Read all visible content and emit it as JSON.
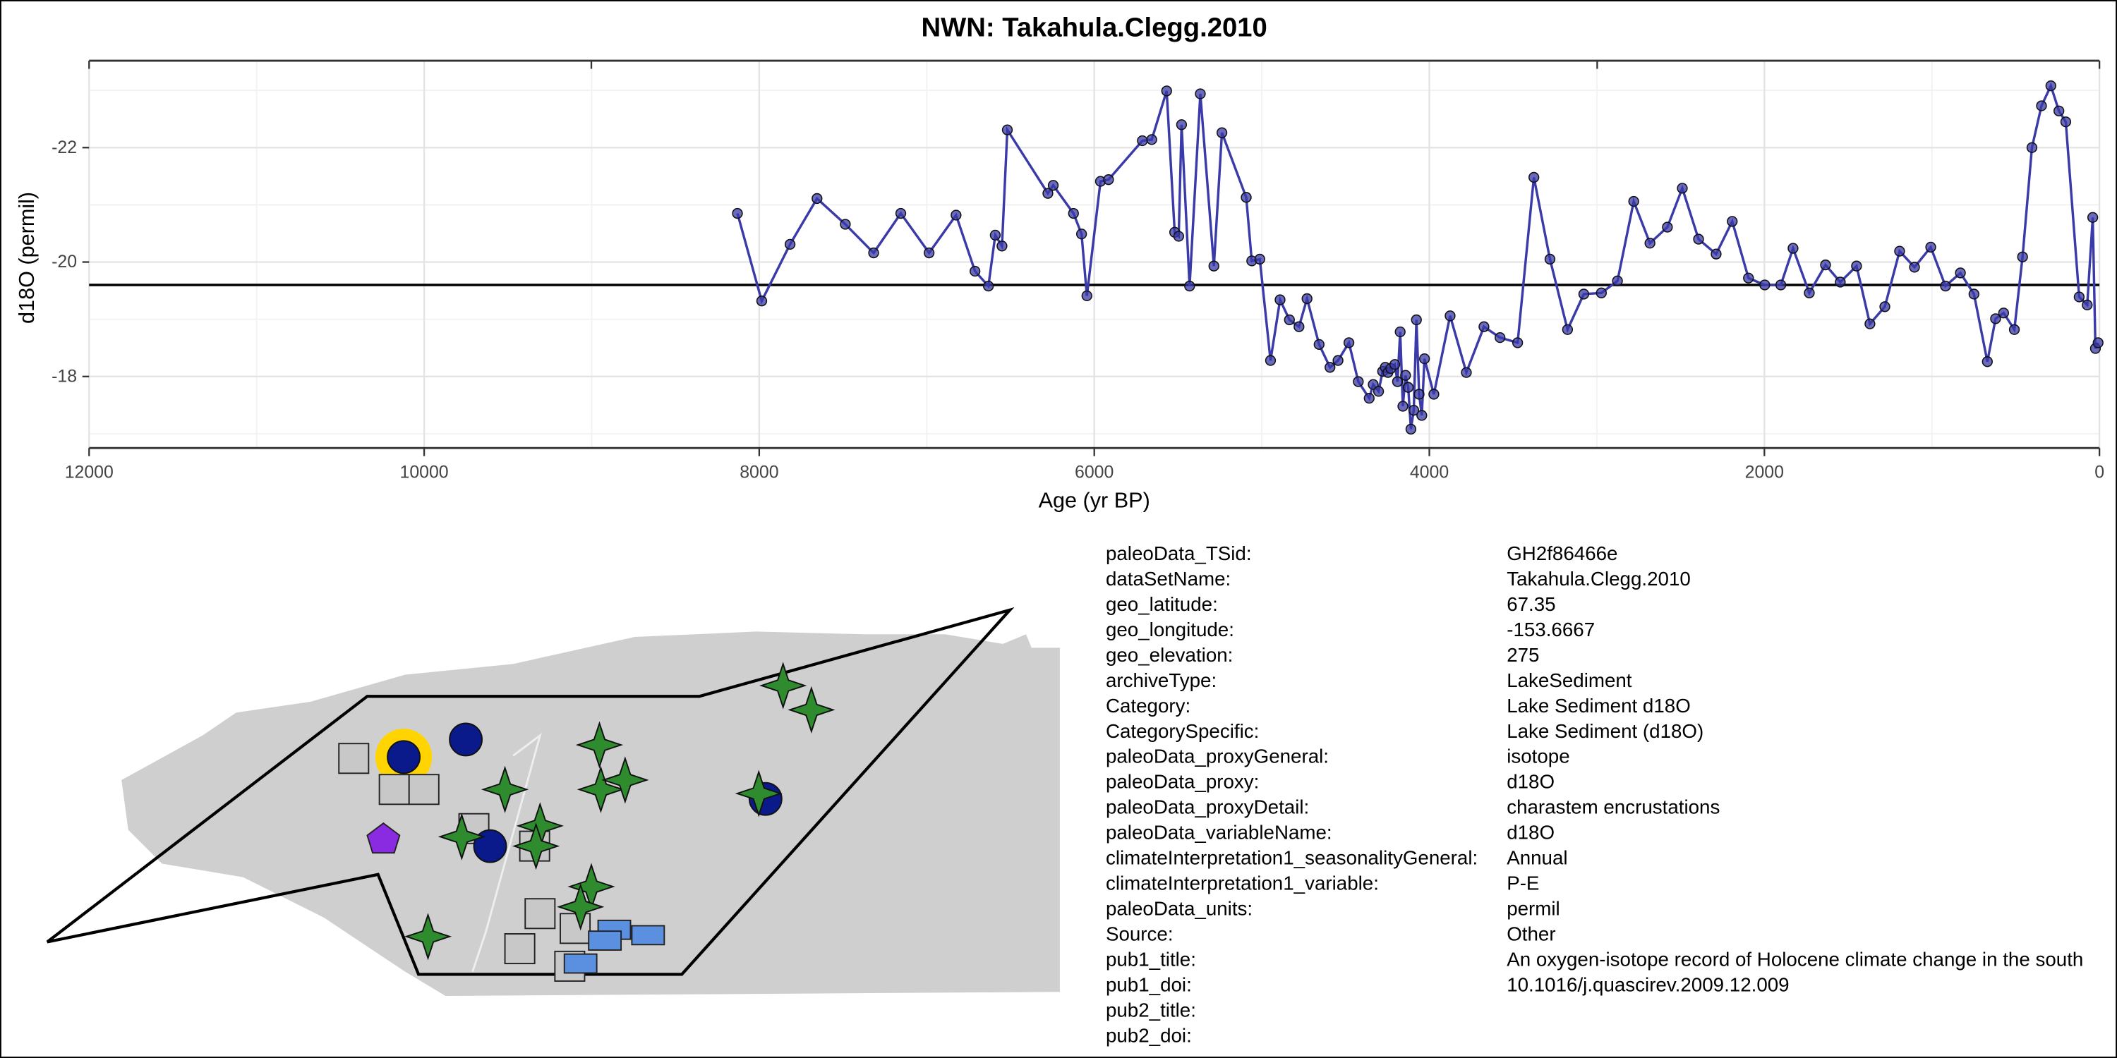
{
  "chart_data": {
    "type": "line",
    "title": "NWN: Takahula.Clegg.2010",
    "x_label": "Age (yr BP)",
    "y_label": "d18O (permil)",
    "xlim": [
      12000,
      0
    ],
    "xticks": [
      12000,
      10000,
      8000,
      6000,
      4000,
      2000,
      0
    ],
    "ylim": [
      -16.75,
      -23.4
    ],
    "yticks": [
      -22,
      -20,
      -18
    ],
    "grid": true,
    "color": "#3a3aa8",
    "reference_line": -19.6,
    "x": [
      8130,
      7985,
      7816,
      7655,
      7486,
      7317,
      7155,
      6986,
      6825,
      6712,
      6632,
      6591,
      6551,
      6519,
      6277,
      6245,
      6124,
      6076,
      6044,
      5963,
      5915,
      5713,
      5657,
      5568,
      5520,
      5496,
      5479,
      5431,
      5367,
      5286,
      5238,
      5093,
      5060,
      5012,
      4948,
      4891,
      4835,
      4778,
      4730,
      4658,
      4593,
      4545,
      4480,
      4424,
      4359,
      4335,
      4303,
      4279,
      4263,
      4247,
      4230,
      4206,
      4190,
      4174,
      4158,
      4142,
      4126,
      4110,
      4093,
      4077,
      4061,
      4045,
      4029,
      3973,
      3876,
      3779,
      3674,
      3578,
      3473,
      3376,
      3280,
      3175,
      3078,
      2973,
      2877,
      2780,
      2683,
      2579,
      2490,
      2393,
      2288,
      2192,
      2095,
      1998,
      1902,
      1829,
      1732,
      1635,
      1547,
      1450,
      1370,
      1281,
      1193,
      1104,
      1007,
      919,
      830,
      749,
      669,
      620,
      572,
      508,
      459,
      403,
      346,
      290,
      242,
      201,
      121,
      73,
      40,
      24,
      8
    ],
    "values": [
      -20.85,
      -19.32,
      -20.31,
      -21.11,
      -20.66,
      -20.16,
      -20.85,
      -20.16,
      -20.82,
      -19.84,
      -19.58,
      -20.47,
      -20.28,
      -22.31,
      -21.2,
      -21.34,
      -20.85,
      -20.49,
      -19.41,
      -21.41,
      -21.44,
      -22.12,
      -22.14,
      -22.99,
      -20.52,
      -20.45,
      -22.4,
      -19.58,
      -22.94,
      -19.93,
      -22.26,
      -21.13,
      -20.02,
      -20.05,
      -18.28,
      -19.34,
      -18.99,
      -18.87,
      -19.36,
      -18.56,
      -18.16,
      -18.28,
      -18.59,
      -17.91,
      -17.62,
      -17.86,
      -17.74,
      -18.09,
      -18.16,
      -18.07,
      -18.14,
      -18.21,
      -17.91,
      -18.78,
      -17.48,
      -18.02,
      -17.81,
      -17.08,
      -17.41,
      -18.99,
      -17.69,
      -17.32,
      -18.31,
      -17.69,
      -19.06,
      -18.07,
      -18.87,
      -18.68,
      -18.59,
      -21.48,
      -20.05,
      -18.82,
      -19.44,
      -19.46,
      -19.67,
      -21.06,
      -20.33,
      -20.61,
      -21.29,
      -20.4,
      -20.14,
      -20.71,
      -19.72,
      -19.6,
      -19.6,
      -20.24,
      -19.46,
      -19.95,
      -19.65,
      -19.93,
      -18.92,
      -19.22,
      -20.19,
      -19.91,
      -20.26,
      -19.58,
      -19.81,
      -19.44,
      -18.26,
      -19.01,
      -19.11,
      -18.82,
      -20.09,
      -22.0,
      -22.73,
      -23.08,
      -22.64,
      -22.45,
      -19.39,
      -19.25,
      -20.78,
      -18.49,
      -18.59
    ]
  },
  "metadata": {
    "rows": [
      [
        "paleoData_TSid:",
        "GH2f86466e"
      ],
      [
        "dataSetName:",
        "Takahula.Clegg.2010"
      ],
      [
        "geo_latitude:",
        "67.35"
      ],
      [
        "geo_longitude:",
        "-153.6667"
      ],
      [
        "geo_elevation:",
        "275"
      ],
      [
        "archiveType:",
        "LakeSediment"
      ],
      [
        "Category:",
        "Lake Sediment d18O"
      ],
      [
        "CategorySpecific:",
        "Lake Sediment (d18O)"
      ],
      [
        "paleoData_proxyGeneral:",
        "isotope"
      ],
      [
        "paleoData_proxy:",
        "d18O"
      ],
      [
        "paleoData_proxyDetail:",
        "charastem encrustations"
      ],
      [
        "paleoData_variableName:",
        "d18O"
      ],
      [
        "climateInterpretation1_seasonalityGeneral:",
        "Annual"
      ],
      [
        "climateInterpretation1_variable:",
        "P-E"
      ],
      [
        "paleoData_units:",
        "permil"
      ],
      [
        "Source:",
        "Other"
      ],
      [
        "pub1_title:",
        "An oxygen-isotope record of Holocene climate change in the south"
      ],
      [
        "pub1_doi:",
        "10.1016/j.quascirev.2009.12.009"
      ],
      [
        "pub2_title:"
      ],
      [
        "pub2_doi:"
      ]
    ]
  }
}
